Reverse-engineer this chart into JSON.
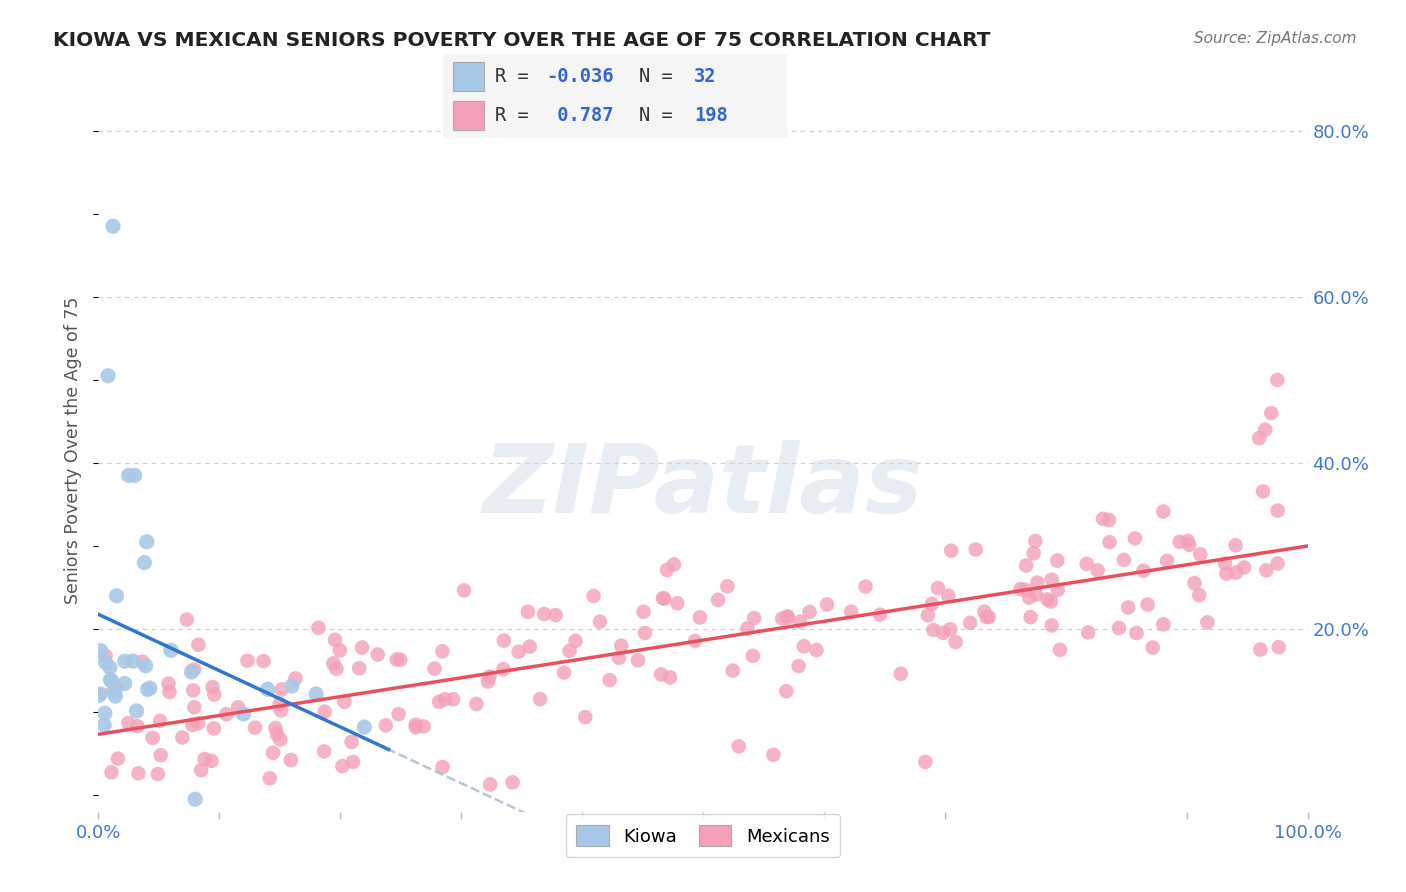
{
  "title": "KIOWA VS MEXICAN SENIORS POVERTY OVER THE AGE OF 75 CORRELATION CHART",
  "source": "Source: ZipAtlas.com",
  "ylabel": "Seniors Poverty Over the Age of 75",
  "xlabel": "",
  "xlim": [
    0.0,
    1.0
  ],
  "ylim": [
    -0.02,
    0.85
  ],
  "xticks": [
    0.0,
    0.1,
    0.2,
    0.3,
    0.4,
    0.5,
    0.6,
    0.7,
    0.9,
    1.0
  ],
  "yticks": [
    0.0,
    0.2,
    0.4,
    0.6,
    0.8
  ],
  "ytick_labels_right": [
    "",
    "20.0%",
    "40.0%",
    "60.0%",
    "80.0%"
  ],
  "kiowa_color": "#a8c8e8",
  "mexican_color": "#f4a0b8",
  "kiowa_line_color": "#3377cc",
  "mexican_line_color": "#e85060",
  "kiowa_dashed_color": "#aabbcc",
  "watermark_text": "ZIPatlas",
  "kiowa_R": -0.036,
  "kiowa_N": 32,
  "mexican_R": 0.787,
  "mexican_N": 198,
  "background_color": "#ffffff",
  "grid_color": "#cccccc",
  "legend_box_color": "#f5f5f5",
  "legend_border_color": "#cccccc",
  "text_color_blue": "#3366cc",
  "text_color_dark": "#333333",
  "title_color": "#222222",
  "source_color": "#777777",
  "axis_label_color": "#555555",
  "tick_color": "#4477cc"
}
